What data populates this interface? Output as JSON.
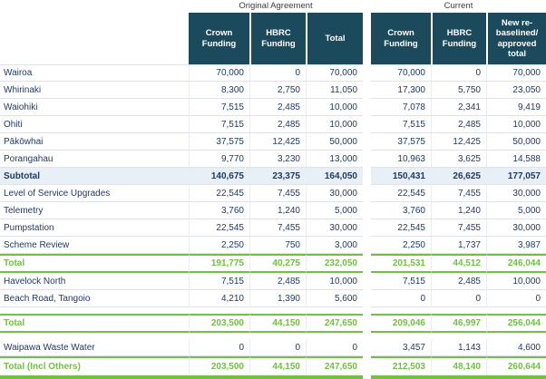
{
  "colors": {
    "header_bg": "#1b4a5c",
    "header_text": "#ffffff",
    "body_text": "#1f3a64",
    "subtotal_bg": "#e9eff7",
    "total_green": "#72bf44",
    "row_border": "#dee3ea"
  },
  "table": {
    "group_headers": [
      {
        "title": "Original Agreement",
        "columns": [
          "Crown Funding",
          "HBRC Funding",
          "Total"
        ]
      },
      {
        "title": "Current",
        "columns": [
          "Crown Funding",
          "HBRC Funding",
          "New re-baselined/ approved total"
        ]
      }
    ],
    "rows": [
      {
        "type": "data",
        "label": "Wairoa",
        "original": [
          "70,000",
          "0",
          "70,000"
        ],
        "current": [
          "70,000",
          "0",
          "70,000"
        ]
      },
      {
        "type": "data",
        "label": "Whirinaki",
        "original": [
          "8,300",
          "2,750",
          "11,050"
        ],
        "current": [
          "17,300",
          "5,750",
          "23,050"
        ]
      },
      {
        "type": "data",
        "label": "Waiohiki",
        "original": [
          "7,515",
          "2,485",
          "10,000"
        ],
        "current": [
          "7,078",
          "2,341",
          "9,419"
        ]
      },
      {
        "type": "data",
        "label": "Ohiti",
        "original": [
          "7,515",
          "2,485",
          "10,000"
        ],
        "current": [
          "7,515",
          "2,485",
          "10,000"
        ]
      },
      {
        "type": "data",
        "label": "Pākōwhai",
        "original": [
          "37,575",
          "12,425",
          "50,000"
        ],
        "current": [
          "37,575",
          "12,425",
          "50,000"
        ]
      },
      {
        "type": "data",
        "label": "Porangahau",
        "original": [
          "9,770",
          "3,230",
          "13,000"
        ],
        "current": [
          "10,963",
          "3,625",
          "14,588"
        ]
      },
      {
        "type": "subtotal",
        "label": "Subtotal",
        "original": [
          "140,675",
          "23,375",
          "164,050"
        ],
        "current": [
          "150,431",
          "26,625",
          "177,057"
        ]
      },
      {
        "type": "data",
        "label": "Level of Service Upgrades",
        "original": [
          "22,545",
          "7,455",
          "30,000"
        ],
        "current": [
          "22,545",
          "7,455",
          "30,000"
        ]
      },
      {
        "type": "data",
        "label": "Telemetry",
        "original": [
          "3,760",
          "1,240",
          "5,000"
        ],
        "current": [
          "3,760",
          "1,240",
          "5,000"
        ]
      },
      {
        "type": "data",
        "label": "Pumpstation",
        "original": [
          "22,545",
          "7,455",
          "30,000"
        ],
        "current": [
          "22,545",
          "7,455",
          "30,000"
        ]
      },
      {
        "type": "data",
        "label": "Scheme Review",
        "original": [
          "2,250",
          "750",
          "3,000"
        ],
        "current": [
          "2,250",
          "1,737",
          "3,987"
        ]
      },
      {
        "type": "total",
        "label": "Total",
        "original": [
          "191,775",
          "40,275",
          "232,050"
        ],
        "current": [
          "201,531",
          "44,512",
          "246,044"
        ]
      },
      {
        "type": "data",
        "label": "Havelock North",
        "original": [
          "7,515",
          "2,485",
          "10,000"
        ],
        "current": [
          "7,515",
          "2,485",
          "10,000"
        ]
      },
      {
        "type": "data",
        "label": "Beach Road, Tangoio",
        "original": [
          "4,210",
          "1,390",
          "5,600"
        ],
        "current": [
          "0",
          "0",
          "0"
        ]
      },
      {
        "type": "spacer"
      },
      {
        "type": "total",
        "label": "Total",
        "original": [
          "203,500",
          "44,150",
          "247,650"
        ],
        "current": [
          "209,046",
          "46,997",
          "256,044"
        ]
      },
      {
        "type": "spacer"
      },
      {
        "type": "data",
        "label": "Waipawa Waste Water",
        "original": [
          "0",
          "0",
          "0"
        ],
        "current": [
          "3,457",
          "1,143",
          "4,600"
        ]
      },
      {
        "type": "grand",
        "label": "Total (Incl Others)",
        "original": [
          "203,500",
          "44,150",
          "247,650"
        ],
        "current": [
          "212,503",
          "48,140",
          "260,644"
        ]
      },
      {
        "type": "bar"
      }
    ]
  }
}
